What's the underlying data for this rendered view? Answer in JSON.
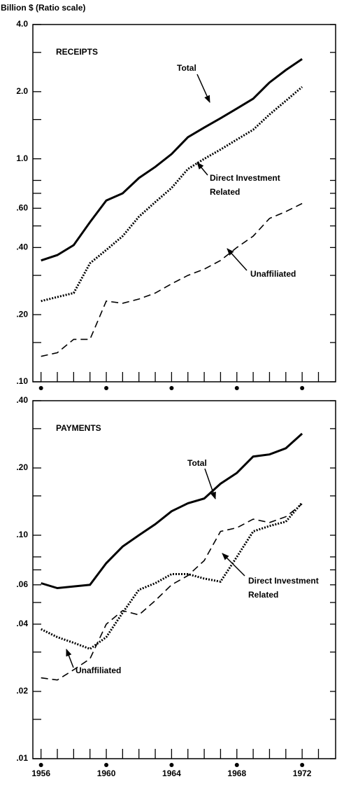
{
  "chart_data": [
    {
      "type": "line",
      "title": "RECEIPTS",
      "y_label": "Billion $ (Ratio scale)",
      "log_scale": true,
      "x": [
        1956,
        1957,
        1958,
        1959,
        1960,
        1961,
        1962,
        1963,
        1964,
        1965,
        1966,
        1967,
        1968,
        1969,
        1970,
        1971,
        1972
      ],
      "series": [
        {
          "name": "Total",
          "color": "#000000",
          "style": "solid",
          "values": [
            0.35,
            0.37,
            0.41,
            0.52,
            0.65,
            0.7,
            0.82,
            0.92,
            1.05,
            1.25,
            1.38,
            1.52,
            1.68,
            1.86,
            2.2,
            2.5,
            2.8
          ]
        },
        {
          "name": "Direct Investment Related",
          "color": "#000000",
          "style": "dotted",
          "values": [
            0.23,
            0.24,
            0.25,
            0.34,
            0.39,
            0.45,
            0.55,
            0.64,
            0.74,
            0.9,
            1.0,
            1.1,
            1.22,
            1.35,
            1.58,
            1.82,
            2.1
          ]
        },
        {
          "name": "Unaffiliated",
          "color": "#000000",
          "style": "dashed",
          "values": [
            0.13,
            0.135,
            0.155,
            0.155,
            0.23,
            0.225,
            0.235,
            0.25,
            0.275,
            0.3,
            0.32,
            0.35,
            0.4,
            0.45,
            0.54,
            0.58,
            0.63
          ]
        }
      ],
      "xlim": [
        1955.5,
        1974.05
      ],
      "xticks": [
        1956,
        1960,
        1964,
        1968,
        1972
      ],
      "minor_xticks": [
        1957,
        1958,
        1959,
        1961,
        1962,
        1963,
        1965,
        1966,
        1967,
        1969,
        1970,
        1971,
        1973
      ],
      "ylim": [
        0.1,
        4
      ],
      "yticks": [
        {
          "value": 4,
          "label": "4.0"
        },
        {
          "value": 2,
          "label": "2.0"
        },
        {
          "value": 1,
          "label": "1.0"
        },
        {
          "value": 0.6,
          "label": ".60"
        },
        {
          "value": 0.4,
          "label": ".40"
        },
        {
          "value": 0.2,
          "label": ".20"
        },
        {
          "value": 0.1,
          "label": ".10"
        }
      ],
      "minor_yticks": [
        3,
        1.5,
        0.8,
        0.7,
        0.5,
        0.3,
        0.15
      ]
    },
    {
      "type": "line",
      "title": "PAYMENTS",
      "log_scale": true,
      "x": [
        1956,
        1957,
        1958,
        1959,
        1960,
        1961,
        1962,
        1963,
        1964,
        1965,
        1966,
        1967,
        1968,
        1969,
        1970,
        1971,
        1972
      ],
      "series": [
        {
          "name": "Total",
          "color": "#000000",
          "style": "solid",
          "values": [
            0.061,
            0.058,
            0.059,
            0.06,
            0.075,
            0.089,
            0.1,
            0.112,
            0.128,
            0.139,
            0.146,
            0.17,
            0.19,
            0.225,
            0.23,
            0.245,
            0.285
          ]
        },
        {
          "name": "Direct Investment Related",
          "color": "#000000",
          "style": "dotted",
          "values": [
            0.038,
            0.035,
            0.033,
            0.031,
            0.035,
            0.045,
            0.057,
            0.061,
            0.067,
            0.067,
            0.064,
            0.062,
            0.08,
            0.104,
            0.11,
            0.115,
            0.14
          ]
        },
        {
          "name": "Unaffiliated",
          "color": "#000000",
          "style": "dashed",
          "values": [
            0.023,
            0.0225,
            0.025,
            0.028,
            0.04,
            0.046,
            0.044,
            0.051,
            0.06,
            0.066,
            0.077,
            0.104,
            0.108,
            0.118,
            0.114,
            0.121,
            0.138
          ]
        }
      ],
      "xlim": [
        1955.5,
        1974.05
      ],
      "xticks": [
        1956,
        1960,
        1964,
        1968,
        1972
      ],
      "minor_xticks": [
        1957,
        1958,
        1959,
        1961,
        1962,
        1963,
        1965,
        1966,
        1967,
        1969,
        1970,
        1971,
        1973
      ],
      "ylim": [
        0.01,
        0.4
      ],
      "yticks": [
        {
          "value": 0.4,
          "label": ".40"
        },
        {
          "value": 0.2,
          "label": ".20"
        },
        {
          "value": 0.1,
          "label": ".10"
        },
        {
          "value": 0.06,
          "label": ".06"
        },
        {
          "value": 0.04,
          "label": ".04"
        },
        {
          "value": 0.02,
          "label": ".02"
        },
        {
          "value": 0.01,
          "label": ".01"
        }
      ],
      "minor_yticks": [
        0.3,
        0.15,
        0.08,
        0.07,
        0.05,
        0.03,
        0.015
      ]
    }
  ]
}
